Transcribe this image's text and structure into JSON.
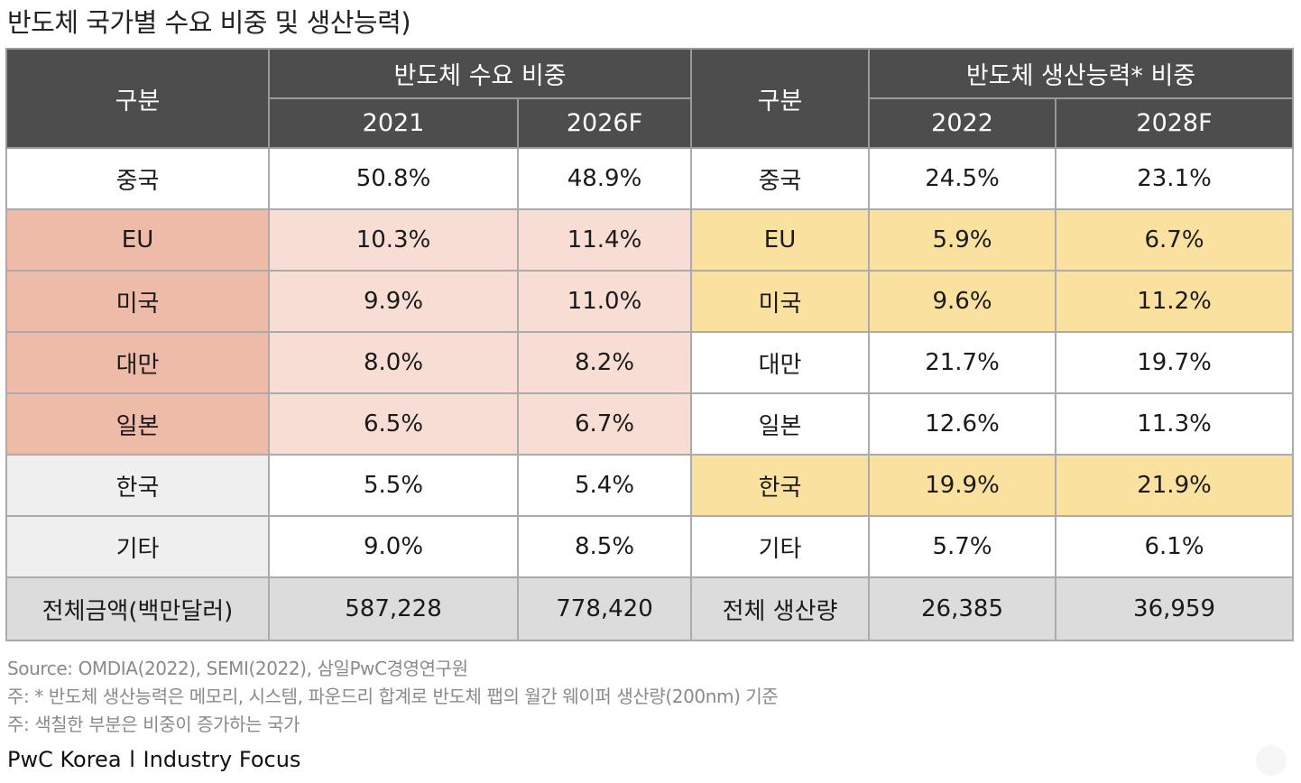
{
  "title": "반도체 국가별 수요 비중 및 생산능력)",
  "chart_data": {
    "type": "table",
    "headers": {
      "category_label": "구분",
      "demand_group": "반도체 수요 비중",
      "demand_years": [
        "2021",
        "2026F"
      ],
      "capacity_group": "반도체 생산능력* 비중",
      "capacity_years": [
        "2022",
        "2028F"
      ]
    },
    "rows": [
      {
        "demand_label": "중국",
        "demand": [
          "50.8%",
          "48.9%"
        ],
        "capacity_label": "중국",
        "capacity": [
          "24.5%",
          "23.1%"
        ]
      },
      {
        "demand_label": "EU",
        "demand": [
          "10.3%",
          "11.4%"
        ],
        "capacity_label": "EU",
        "capacity": [
          "5.9%",
          "6.7%"
        ]
      },
      {
        "demand_label": "미국",
        "demand": [
          "9.9%",
          "11.0%"
        ],
        "capacity_label": "미국",
        "capacity": [
          "9.6%",
          "11.2%"
        ]
      },
      {
        "demand_label": "대만",
        "demand": [
          "8.0%",
          "8.2%"
        ],
        "capacity_label": "대만",
        "capacity": [
          "21.7%",
          "19.7%"
        ]
      },
      {
        "demand_label": "일본",
        "demand": [
          "6.5%",
          "6.7%"
        ],
        "capacity_label": "일본",
        "capacity": [
          "12.6%",
          "11.3%"
        ]
      },
      {
        "demand_label": "한국",
        "demand": [
          "5.5%",
          "5.4%"
        ],
        "capacity_label": "한국",
        "capacity": [
          "19.9%",
          "21.9%"
        ]
      },
      {
        "demand_label": "기타",
        "demand": [
          "9.0%",
          "8.5%"
        ],
        "capacity_label": "기타",
        "capacity": [
          "5.7%",
          "6.1%"
        ]
      }
    ],
    "total": {
      "demand_label": "전체금액(백만달러)",
      "demand": [
        "587,228",
        "778,420"
      ],
      "capacity_label": "전체 생산량",
      "capacity": [
        "26,385",
        "36,959"
      ]
    },
    "highlight_colors": {
      "demand_increase_label": "#edbba8",
      "demand_increase_value": "#f7ddd4",
      "capacity_increase": "#fae1a0",
      "neutral_label": "#efefef",
      "total_row": "#dcdcdc",
      "header": "#4d4d4d"
    }
  },
  "notes": {
    "source": "Source: OMDIA(2022), SEMI(2022), 삼일PwC경영연구원",
    "note1": "주: * 반도체 생산능력은 메모리, 시스템, 파운드리 합계로 반도체 팹의 월간 웨이퍼 생산량(200nm) 기준",
    "note2": "주: 색칠한 부분은 비중이 증가하는 국가"
  },
  "footer": {
    "brand": "PwC Korea",
    "separator": "l",
    "section": "Industry Focus"
  }
}
